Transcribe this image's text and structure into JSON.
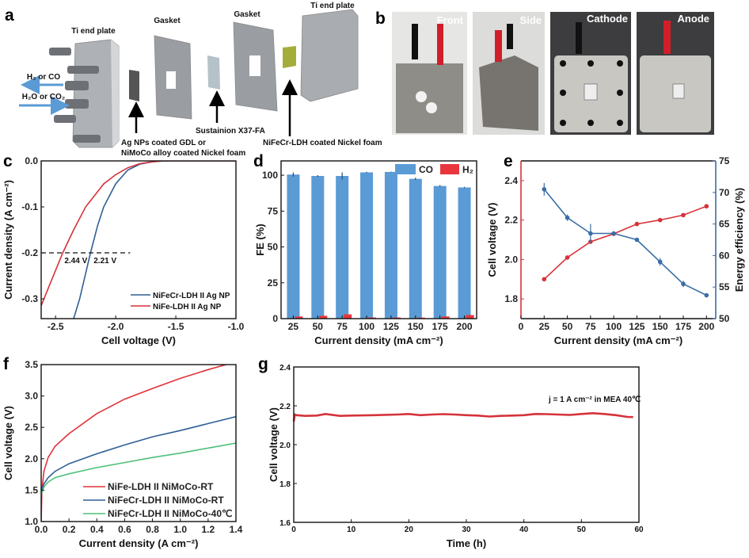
{
  "panel_labels": {
    "a": "a",
    "b": "b",
    "c": "c",
    "d": "d",
    "e": "e",
    "f": "f",
    "g": "g"
  },
  "panel_a": {
    "ti_end_plate_left": "Ti end plate",
    "gasket_1": "Gasket",
    "gasket_2": "Gasket",
    "ti_end_plate_right": "Ti end plate",
    "outlet": "H₂ or CO",
    "inlet": "H₂O or CO₂",
    "cathode_line1": "Ag NPs coated GDL or",
    "cathode_line2": "NiMoCo alloy coated Nickel foam",
    "membrane": "Sustainion X37-FA",
    "anode": "NiFeCr-LDH coated Nickel foam",
    "colors": {
      "plate": "#b9bcc0",
      "gasket": "#9a9ea3",
      "membrane": "#b5c2c8",
      "anode": "#a4ad3a",
      "arrow": "#5b9bd5"
    }
  },
  "panel_b": {
    "photos": [
      "Front",
      "Side",
      "Cathode",
      "Anode"
    ]
  },
  "chart_data": [
    {
      "panel": "c",
      "type": "line",
      "xlabel": "Cell voltage (V)",
      "ylabel": "Current density (A cm⁻²)",
      "xlim": [
        -2.62,
        -1.0
      ],
      "ylim": [
        -0.343,
        0.0
      ],
      "xticks": [
        "-2.5",
        "-2.0",
        "-1.5",
        "-1.0"
      ],
      "xtick_values": [
        -2.5,
        -2.0,
        -1.5,
        -1.0
      ],
      "yticks": [
        "0.0",
        "-0.1",
        "-0.2",
        "-0.3"
      ],
      "ytick_values": [
        0.0,
        -0.1,
        -0.2,
        -0.3
      ],
      "legend_placement": "bottom-right",
      "reference_line": {
        "y": -0.2,
        "style": "dashed"
      },
      "annotations": [
        {
          "text": "2.44 V",
          "x": -2.44,
          "y": -0.2,
          "color": "#d6323a"
        },
        {
          "text": "2.21 V",
          "x": -2.21,
          "y": -0.2,
          "color": "#3a6ea5"
        }
      ],
      "series": [
        {
          "name": "NiFeCr-LDH II Ag NP",
          "color": "#2f5f95",
          "x": [
            -2.35,
            -2.3,
            -2.21,
            -2.15,
            -2.1,
            -2.0,
            -1.9,
            -1.8,
            -1.7,
            -1.6,
            -1.0
          ],
          "y": [
            -0.343,
            -0.3,
            -0.2,
            -0.14,
            -0.1,
            -0.05,
            -0.02,
            -0.007,
            -0.002,
            0,
            0
          ]
        },
        {
          "name": "NiFe-LDH II Ag NP",
          "color": "#d6323a",
          "x": [
            -2.62,
            -2.55,
            -2.44,
            -2.35,
            -2.25,
            -2.1,
            -2.0,
            -1.9,
            -1.8,
            -1.7,
            -1.6,
            -1.0
          ],
          "y": [
            -0.315,
            -0.27,
            -0.2,
            -0.15,
            -0.1,
            -0.05,
            -0.03,
            -0.015,
            -0.006,
            -0.002,
            0,
            0
          ]
        }
      ]
    },
    {
      "panel": "d",
      "type": "bar",
      "xlabel": "Current density (mA cm⁻²)",
      "ylabel": "FE (%)",
      "categories": [
        "25",
        "50",
        "75",
        "100",
        "125",
        "150",
        "175",
        "200"
      ],
      "ylim": [
        0,
        110
      ],
      "yticks": [
        "0",
        "25",
        "50",
        "75",
        "100"
      ],
      "ytick_values": [
        0,
        25,
        50,
        75,
        100
      ],
      "legend_placement": "top-right",
      "series": [
        {
          "name": "CO",
          "color": "#5b9bd5",
          "values": [
            100.5,
            99.5,
            99.5,
            102,
            102.3,
            97.5,
            92.5,
            91.5
          ],
          "errors": [
            1.5,
            0.6,
            2.5,
            0.4,
            0.2,
            0.8,
            0.6,
            0.4
          ]
        },
        {
          "name": "H₂",
          "color": "#e8363c",
          "values": [
            1.5,
            2,
            3,
            0.8,
            0.8,
            0.7,
            1.5,
            2.5
          ],
          "errors": [
            0.4,
            0.4,
            0.5,
            0.2,
            0.2,
            0.2,
            0.6,
            0.5
          ]
        }
      ]
    },
    {
      "panel": "e",
      "type": "line",
      "xlabel": "Current density (mA cm⁻²)",
      "ylabel_left": "Cell voltage (V)",
      "ylabel_right": "Energy efficiency (%)",
      "xlim": [
        0,
        210
      ],
      "ylim_left": [
        1.7,
        2.5
      ],
      "ylim_right": [
        50,
        75
      ],
      "xticks": [
        "0",
        "25",
        "50",
        "75",
        "100",
        "125",
        "150",
        "175",
        "200"
      ],
      "xtick_values": [
        0,
        25,
        50,
        75,
        100,
        125,
        150,
        175,
        200
      ],
      "yticks_left": [
        "1.8",
        "2.0",
        "2.2",
        "2.4"
      ],
      "ytick_left_values": [
        1.8,
        2.0,
        2.2,
        2.4
      ],
      "yticks_right": [
        "50",
        "55",
        "60",
        "65",
        "70",
        "75"
      ],
      "ytick_right_values": [
        50,
        55,
        60,
        65,
        70,
        75
      ],
      "series": [
        {
          "axis": "left",
          "color": "#d6323a",
          "x": [
            25,
            50,
            75,
            100,
            125,
            150,
            175,
            200
          ],
          "y": [
            1.9,
            2.01,
            2.09,
            2.13,
            2.18,
            2.2,
            2.225,
            2.27
          ]
        },
        {
          "axis": "right",
          "color": "#3a6ea5",
          "x": [
            25,
            50,
            75,
            100,
            125,
            150,
            175,
            200
          ],
          "y": [
            70.5,
            66,
            63.5,
            63.5,
            62.5,
            59,
            55.5,
            53.7
          ],
          "errors": [
            1,
            0.5,
            1.5,
            0.3,
            0.2,
            0.6,
            0.5,
            0.2
          ]
        }
      ]
    },
    {
      "panel": "f",
      "type": "line",
      "xlabel": "Current density (A cm⁻²)",
      "ylabel": "Cell voltage (V)",
      "xlim": [
        0,
        1.4
      ],
      "ylim": [
        1.0,
        3.5
      ],
      "xticks": [
        "0.0",
        "0.2",
        "0.4",
        "0.6",
        "0.8",
        "1.0",
        "1.2",
        "1.4"
      ],
      "xtick_values": [
        0,
        0.2,
        0.4,
        0.6,
        0.8,
        1.0,
        1.2,
        1.4
      ],
      "yticks": [
        "1.0",
        "1.5",
        "2.0",
        "2.5",
        "3.0",
        "3.5"
      ],
      "ytick_values": [
        1.0,
        1.5,
        2.0,
        2.5,
        3.0,
        3.5
      ],
      "legend_placement": "bottom-right",
      "series": [
        {
          "name": "NiFe-LDH II NiMoCo-RT",
          "color": "#e0323a",
          "x": [
            0,
            0.005,
            0.02,
            0.05,
            0.1,
            0.2,
            0.4,
            0.6,
            0.8,
            1.0,
            1.2,
            1.33
          ],
          "y": [
            1.0,
            1.5,
            1.8,
            2.02,
            2.2,
            2.4,
            2.72,
            2.95,
            3.12,
            3.28,
            3.42,
            3.5
          ]
        },
        {
          "name": "NiFeCr-LDH II NiMoCo-RT",
          "color": "#2f5f95",
          "x": [
            0,
            0.02,
            0.05,
            0.1,
            0.2,
            0.4,
            0.6,
            0.8,
            1.0,
            1.2,
            1.4
          ],
          "y": [
            1.48,
            1.6,
            1.7,
            1.8,
            1.92,
            2.08,
            2.22,
            2.35,
            2.45,
            2.56,
            2.67
          ]
        },
        {
          "name": "NiFeCr-LDH II NiMoCo-40℃",
          "color": "#4fc07a",
          "x": [
            0,
            0.02,
            0.05,
            0.1,
            0.2,
            0.4,
            0.6,
            0.8,
            1.0,
            1.2,
            1.4
          ],
          "y": [
            1.42,
            1.55,
            1.63,
            1.7,
            1.76,
            1.86,
            1.94,
            2.02,
            2.09,
            2.17,
            2.25
          ]
        }
      ]
    },
    {
      "panel": "g",
      "type": "line",
      "xlabel": "Time (h)",
      "ylabel": "Cell voltage (V)",
      "xlim": [
        0,
        60
      ],
      "ylim": [
        1.6,
        2.4
      ],
      "xticks": [
        "0",
        "10",
        "20",
        "30",
        "40",
        "50",
        "60"
      ],
      "xtick_values": [
        0,
        10,
        20,
        30,
        40,
        50,
        60
      ],
      "yticks": [
        "1.6",
        "1.8",
        "2.0",
        "2.2",
        "2.4"
      ],
      "ytick_values": [
        1.6,
        1.8,
        2.0,
        2.2,
        2.4
      ],
      "annotation": "j = 1 A cm⁻² in MEA  40℃",
      "series": [
        {
          "color": "#d6323a",
          "x": [
            0,
            0.2,
            0.5,
            2,
            4,
            5.5,
            8,
            10,
            14,
            18,
            20,
            22,
            24,
            26,
            28,
            30,
            32,
            34,
            36,
            38,
            40,
            42,
            44,
            46,
            48,
            50,
            52,
            54,
            56,
            58,
            59
          ],
          "y": [
            2.12,
            2.155,
            2.152,
            2.148,
            2.15,
            2.158,
            2.148,
            2.15,
            2.152,
            2.155,
            2.158,
            2.152,
            2.155,
            2.157,
            2.155,
            2.152,
            2.15,
            2.145,
            2.148,
            2.15,
            2.152,
            2.158,
            2.157,
            2.155,
            2.153,
            2.158,
            2.162,
            2.158,
            2.152,
            2.143,
            2.142
          ]
        }
      ]
    }
  ]
}
